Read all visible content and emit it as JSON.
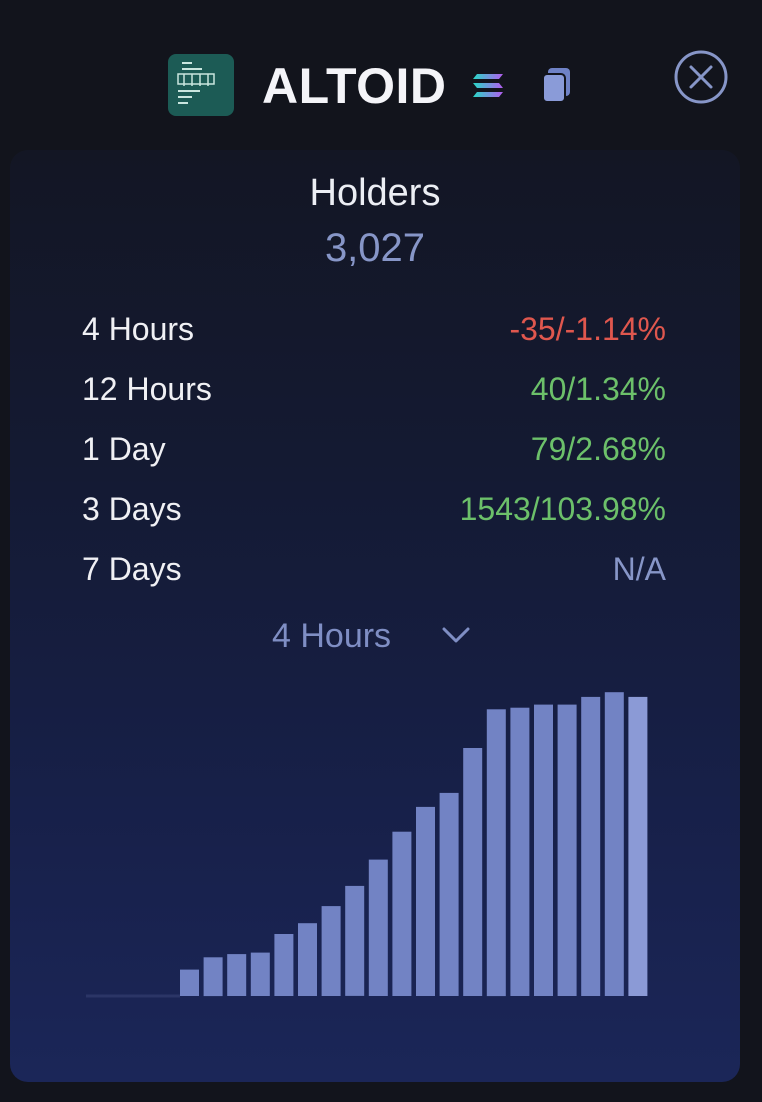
{
  "header": {
    "token_name": "ALTOID",
    "icons": {
      "logo": "token-logo",
      "chain": "solana-icon",
      "copy": "copy-icon",
      "close": "close-circle-icon"
    }
  },
  "holders": {
    "label": "Holders",
    "count": "3,027"
  },
  "stats": [
    {
      "label": "4 Hours",
      "value": "-35/-1.14%",
      "tone": "neg"
    },
    {
      "label": "12 Hours",
      "value": "40/1.34%",
      "tone": "pos"
    },
    {
      "label": "1 Day",
      "value": "79/2.68%",
      "tone": "pos"
    },
    {
      "label": "3 Days",
      "value": "1543/103.98%",
      "tone": "pos"
    },
    {
      "label": "7 Days",
      "value": "N/A",
      "tone": "na"
    }
  ],
  "period_selector": {
    "selected": "4 Hours"
  },
  "colors": {
    "negative": "#e0574e",
    "positive": "#6cc06a",
    "accent": "#8796c8",
    "bar": "#7283c4",
    "bar_last": "#8b9ad6"
  },
  "chart_data": {
    "type": "bar",
    "values": [
      0,
      0,
      0,
      0,
      17,
      25,
      27,
      28,
      40,
      47,
      58,
      71,
      88,
      106,
      122,
      131,
      160,
      185,
      186,
      188,
      188,
      193,
      196,
      193
    ],
    "ylim": [
      0,
      200
    ],
    "grid": false,
    "legend": "none"
  }
}
